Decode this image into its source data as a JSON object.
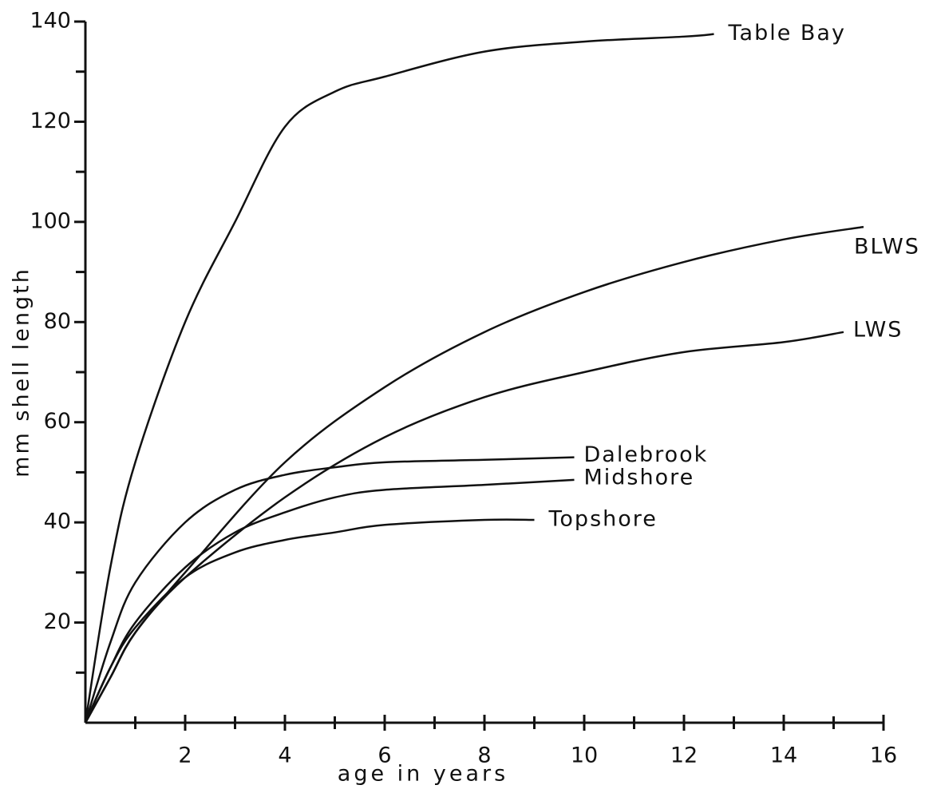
{
  "chart_data": {
    "type": "line",
    "xlabel": "age in years",
    "ylabel": "mm shell length",
    "xlim": [
      0,
      16
    ],
    "ylim": [
      0,
      140
    ],
    "xticks": [
      2,
      4,
      6,
      8,
      10,
      12,
      14,
      16
    ],
    "yticks": [
      20,
      40,
      60,
      80,
      100,
      120,
      140
    ],
    "color": "#111111",
    "series": [
      {
        "name": "Table Bay",
        "x": [
          0,
          0.5,
          1,
          2,
          3,
          4,
          5,
          6,
          8,
          10,
          12,
          12.6
        ],
        "values": [
          0,
          31,
          52,
          80,
          100,
          119,
          126,
          129,
          134,
          136,
          137,
          137.5
        ]
      },
      {
        "name": "BLWS",
        "x": [
          0,
          0.5,
          1,
          2,
          4,
          6,
          8,
          10,
          12,
          14,
          15.6
        ],
        "values": [
          0,
          9,
          18,
          30,
          52,
          67,
          78,
          86,
          92,
          96.5,
          99
        ]
      },
      {
        "name": "LWS",
        "x": [
          0,
          0.5,
          1,
          2,
          4,
          6,
          8,
          10,
          12,
          14,
          15.2
        ],
        "values": [
          0,
          9,
          18,
          29,
          45,
          57,
          65,
          70,
          74,
          76,
          78
        ]
      },
      {
        "name": "Dalebrook",
        "x": [
          0,
          0.5,
          1,
          2,
          3,
          4,
          5,
          6,
          8,
          9.8
        ],
        "values": [
          0,
          16,
          28,
          40,
          46.5,
          49.5,
          51,
          52,
          52.5,
          53
        ]
      },
      {
        "name": "Midshore",
        "x": [
          0,
          0.5,
          1,
          2,
          3,
          4,
          5,
          6,
          8,
          9.8
        ],
        "values": [
          0,
          11,
          20,
          31,
          38,
          42,
          45,
          46.5,
          47.5,
          48.5
        ]
      },
      {
        "name": "Topshore",
        "x": [
          0,
          0.5,
          1,
          2,
          3,
          4,
          5,
          6,
          8,
          9
        ],
        "values": [
          0,
          11,
          19,
          29,
          34,
          36.5,
          38,
          39.5,
          40.5,
          40.5
        ]
      }
    ]
  }
}
